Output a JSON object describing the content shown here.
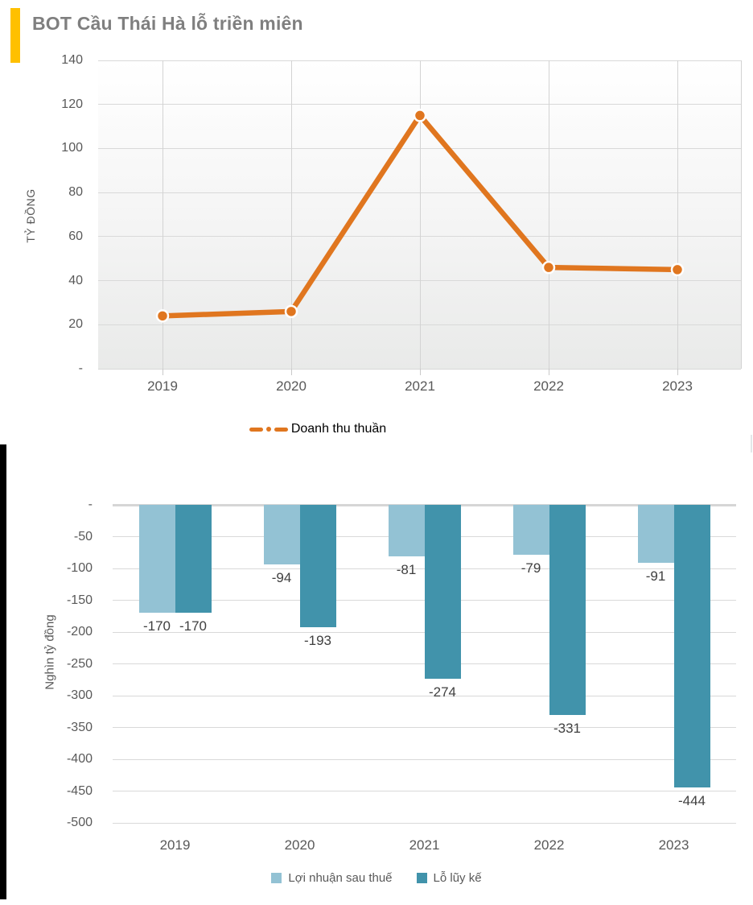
{
  "header": {
    "title": "BOT Cầu Thái Hà lỗ triền miên",
    "accent_color": "#FFC000"
  },
  "colors": {
    "line": "#E0761F",
    "profit_bar": "#93C2D4",
    "cumulative_loss_bar": "#4193AB",
    "title_text": "#7F7F7F",
    "axis_text": "#595959",
    "data_label_text": "#404040",
    "gridline": "#D9D9D9"
  },
  "chart_data": [
    {
      "type": "line",
      "title": "BOT Cầu Thái Hà lỗ triền miên",
      "categories": [
        "2019",
        "2020",
        "2021",
        "2022",
        "2023"
      ],
      "series": [
        {
          "name": "Doanh thu thuần",
          "values": [
            24,
            26,
            115,
            46,
            45
          ],
          "color": "#E0761F"
        }
      ],
      "xlabel": "",
      "ylabel": "TỶ ĐỒNG",
      "ylim": [
        0,
        140
      ],
      "yticks": [
        140,
        120,
        100,
        80,
        60,
        40,
        20,
        0
      ],
      "zero_tick_label": "-",
      "grid": true,
      "vertical_grid": true,
      "legend_position": "bottom",
      "marker": "circle"
    },
    {
      "type": "bar",
      "title": "",
      "categories": [
        "2019",
        "2020",
        "2021",
        "2022",
        "2023"
      ],
      "series": [
        {
          "name": "Lợi nhuận sau thuế",
          "values": [
            -170,
            -94,
            -81,
            -79,
            -91
          ],
          "color": "#93C2D4"
        },
        {
          "name": "Lỗ lũy kế",
          "values": [
            -170,
            -193,
            -274,
            -331,
            -444
          ],
          "color": "#4193AB"
        }
      ],
      "xlabel": "",
      "ylabel": "Nghìn tỷ đồng",
      "ylim": [
        -500,
        0
      ],
      "yticks": [
        0,
        -50,
        -100,
        -150,
        -200,
        -250,
        -300,
        -350,
        -400,
        -450,
        -500
      ],
      "zero_tick_label": "-",
      "grid": true,
      "vertical_grid": false,
      "data_labels": true,
      "legend_position": "bottom"
    }
  ]
}
